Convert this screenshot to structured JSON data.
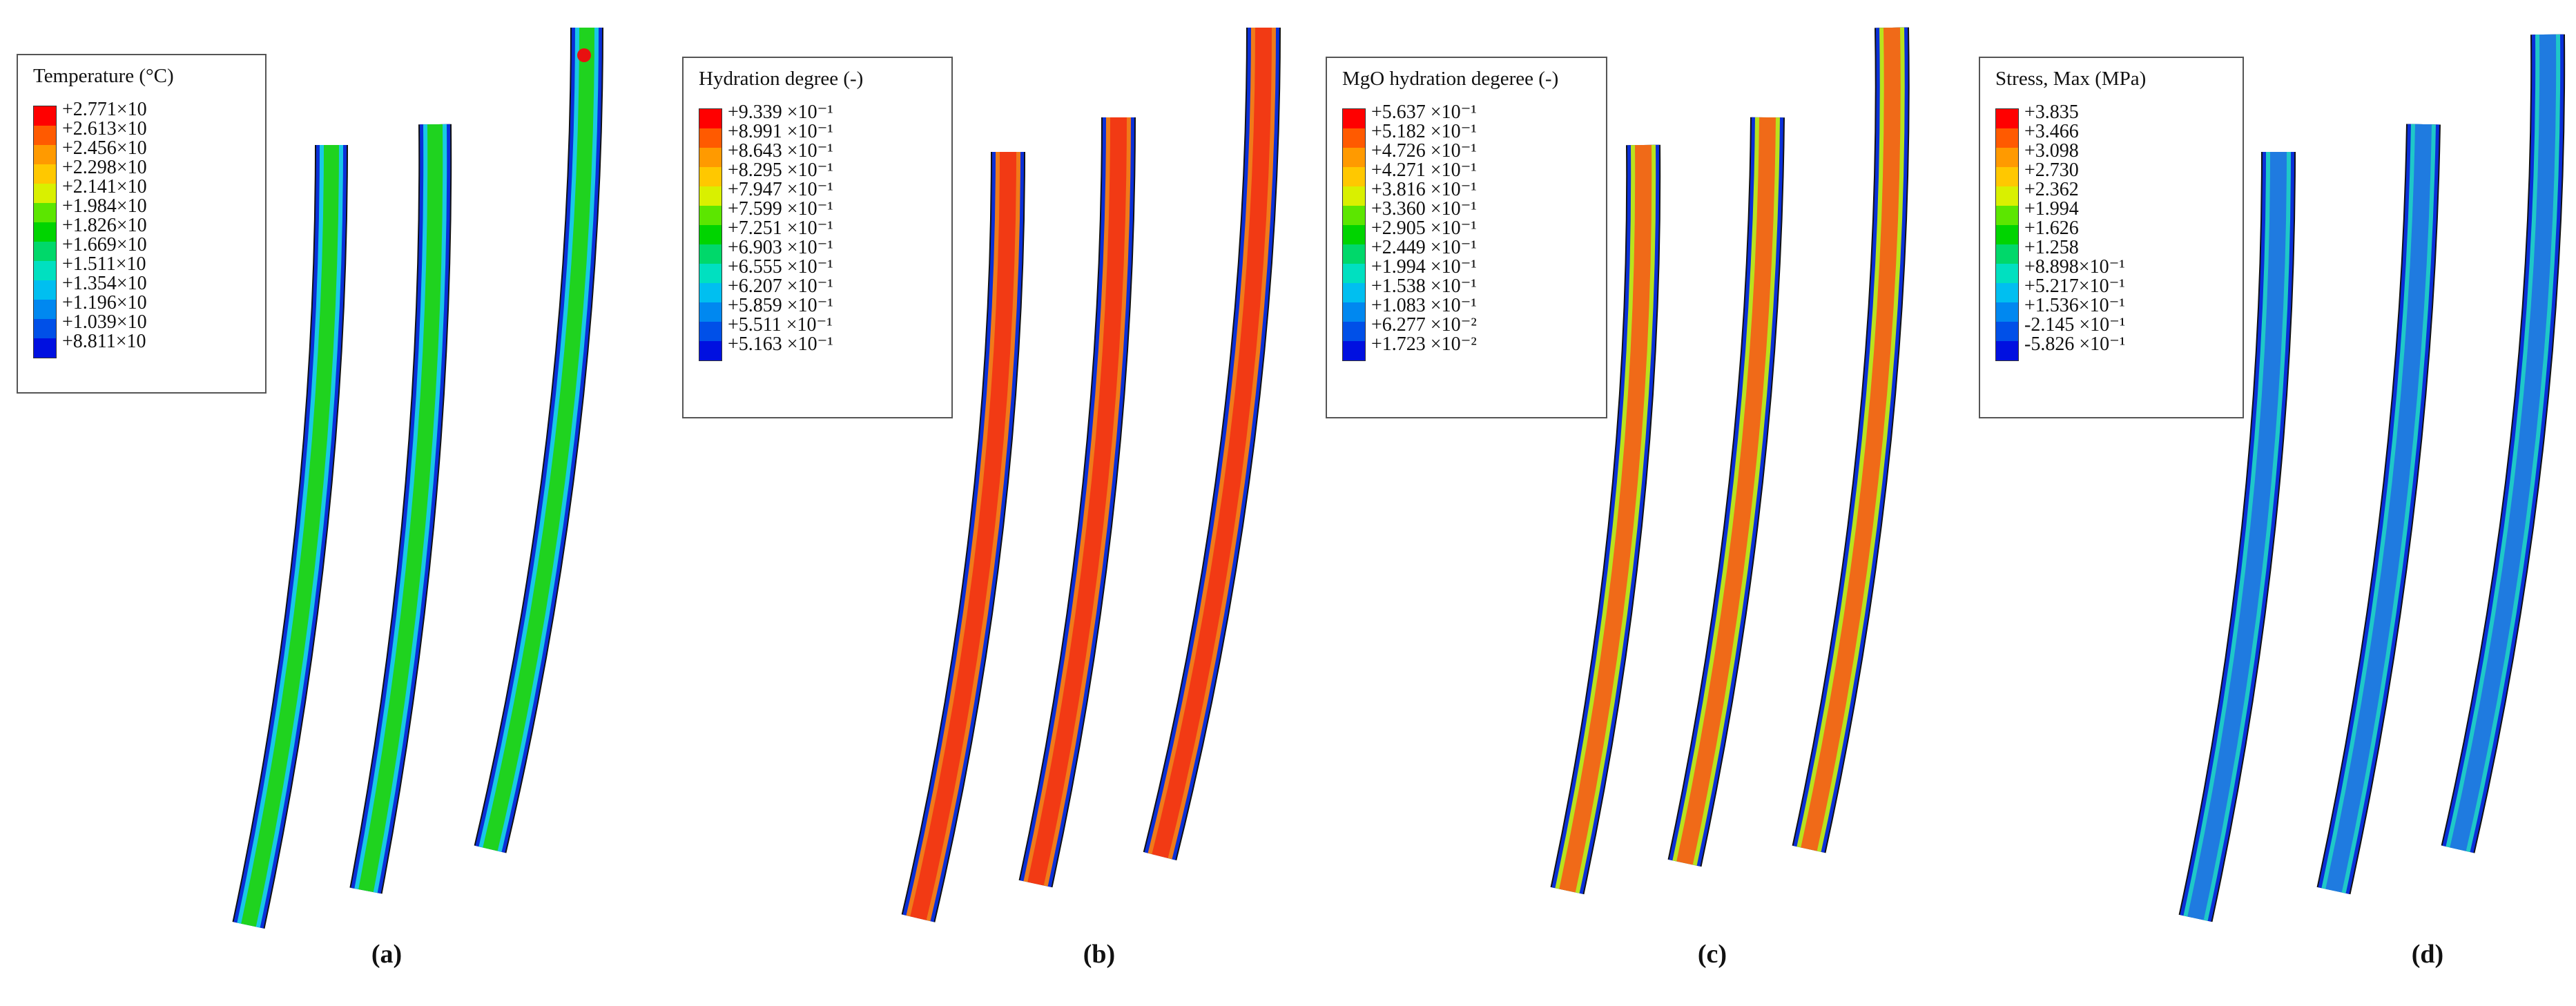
{
  "panels": [
    {
      "id": "a",
      "caption": "(a)",
      "legend": {
        "title": "Temperature (°C)",
        "values": [
          "+2.771×10",
          "+2.613×10",
          "+2.456×10",
          "+2.298×10",
          "+2.141×10",
          "+1.984×10",
          "+1.826×10",
          "+1.669×10",
          "+1.511×10",
          "+1.354×10",
          "+1.196×10",
          "+1.039×10",
          "+8.811×10"
        ]
      },
      "field_colors": {
        "rim": "#0a2fd8",
        "edge": "#19c8e6",
        "body": "#1fd31f",
        "hot": "#e81010"
      }
    },
    {
      "id": "b",
      "caption": "(b)",
      "legend": {
        "title": "Hydration degree (-)",
        "values": [
          "+9.339 ×10⁻¹",
          "+8.991 ×10⁻¹",
          "+8.643 ×10⁻¹",
          "+8.295 ×10⁻¹",
          "+7.947 ×10⁻¹",
          "+7.599 ×10⁻¹",
          "+7.251 ×10⁻¹",
          "+6.903 ×10⁻¹",
          "+6.555 ×10⁻¹",
          "+6.207 ×10⁻¹",
          "+5.859 ×10⁻¹",
          "+5.511 ×10⁻¹",
          "+5.163 ×10⁻¹"
        ]
      },
      "field_colors": {
        "rim": "#0a2fd8",
        "edge": "#f07a1a",
        "body": "#f23a14",
        "hot": "#ff1208"
      }
    },
    {
      "id": "c",
      "caption": "(c)",
      "legend": {
        "title": "MgO hydration degeree (-)",
        "values": [
          "+5.637 ×10⁻¹",
          "+5.182 ×10⁻¹",
          "+4.726 ×10⁻¹",
          "+4.271 ×10⁻¹",
          "+3.816 ×10⁻¹",
          "+3.360 ×10⁻¹",
          "+2.905 ×10⁻¹",
          "+2.449 ×10⁻¹",
          "+1.994 ×10⁻¹",
          "+1.538 ×10⁻¹",
          "+1.083 ×10⁻¹",
          "+6.277 ×10⁻²",
          "+1.723 ×10⁻²"
        ]
      },
      "field_colors": {
        "rim": "#0a2fd8",
        "edge": "#b9e21e",
        "body": "#f06a18",
        "hot": "#f21a10"
      }
    },
    {
      "id": "d",
      "caption": "(d)",
      "legend": {
        "title": "Stress, Max (MPa)",
        "values": [
          "+3.835",
          "+3.466",
          "+3.098",
          "+2.730",
          "+2.362",
          "+1.994",
          "+1.626",
          "+1.258",
          "+8.898×10⁻¹",
          "+5.217×10⁻¹",
          "+1.536×10⁻¹",
          "-2.145 ×10⁻¹",
          "-5.826 ×10⁻¹"
        ]
      },
      "field_colors": {
        "rim": "#0a2fd8",
        "edge": "#1fc8c8",
        "body": "#1f7be0",
        "hot": "#1040d8"
      }
    }
  ],
  "colormap": [
    "#ff0000",
    "#ff5a00",
    "#ff9a00",
    "#ffc800",
    "#d9f000",
    "#5ce600",
    "#00d400",
    "#00d86a",
    "#00e0c0",
    "#00bff0",
    "#0088f0",
    "#0050e8",
    "#0010e0"
  ]
}
